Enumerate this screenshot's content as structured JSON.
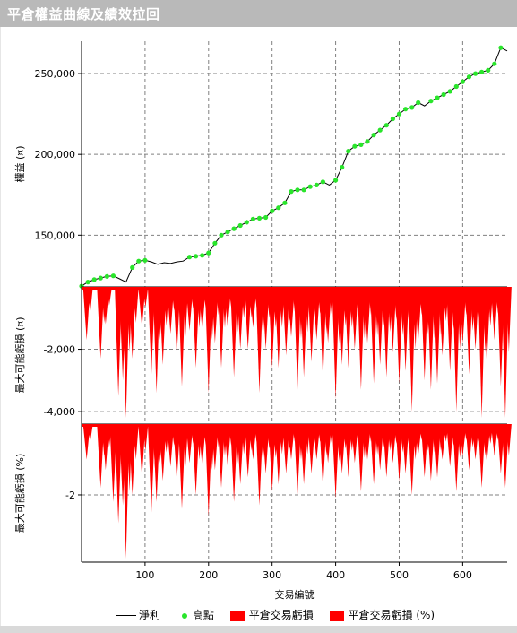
{
  "window": {
    "title": "平倉權益曲線及績效拉回"
  },
  "colors": {
    "net": "#000000",
    "high": "#29e52b",
    "drawdown": "#ff0000",
    "grid": "#808080",
    "titlebar": "#b9b9b9"
  },
  "legend": [
    {
      "label": "淨利",
      "swatch": "line"
    },
    {
      "label": "高點",
      "swatch": "dot"
    },
    {
      "label": "平倉交易虧損",
      "swatch": "box"
    },
    {
      "label": "平倉交易虧損 (%)",
      "swatch": "box"
    }
  ],
  "chart_data": [
    {
      "type": "line",
      "ylabel": "權益 (¤)",
      "xlim": [
        0,
        670
      ],
      "ylim": [
        118000,
        270000
      ],
      "yticks": [
        150000,
        200000,
        250000
      ],
      "ytick_labels": [
        "150,000",
        "200,000",
        "250,000"
      ],
      "grid": true,
      "series": [
        {
          "name": "淨利",
          "x": [
            0,
            10,
            20,
            30,
            40,
            50,
            60,
            70,
            80,
            90,
            100,
            110,
            120,
            130,
            140,
            150,
            160,
            170,
            180,
            190,
            200,
            210,
            220,
            230,
            240,
            250,
            260,
            270,
            280,
            290,
            300,
            310,
            320,
            330,
            340,
            350,
            360,
            370,
            380,
            390,
            400,
            410,
            420,
            430,
            440,
            450,
            460,
            470,
            480,
            490,
            500,
            510,
            520,
            530,
            540,
            550,
            560,
            570,
            580,
            590,
            600,
            610,
            620,
            630,
            640,
            650,
            660,
            670
          ],
          "y": [
            118500,
            121000,
            122500,
            123500,
            124500,
            124800,
            123000,
            121000,
            130000,
            134000,
            134500,
            133500,
            132000,
            133000,
            132500,
            133500,
            134000,
            136500,
            137000,
            137500,
            139000,
            145000,
            150000,
            152000,
            154000,
            156000,
            158000,
            160000,
            160500,
            161000,
            165000,
            167000,
            170000,
            177000,
            178000,
            178000,
            180000,
            181000,
            183000,
            181000,
            184000,
            192000,
            202000,
            205000,
            206000,
            208000,
            212000,
            215000,
            218000,
            222000,
            225000,
            228000,
            229000,
            232000,
            230000,
            233000,
            235000,
            237000,
            239000,
            242000,
            245000,
            248000,
            250000,
            251000,
            252000,
            256000,
            266000,
            264000
          ]
        }
      ]
    },
    {
      "type": "area",
      "ylabel": "最大可能虧損 (¤)",
      "xlim": [
        0,
        670
      ],
      "ylim": [
        -4400,
        0
      ],
      "yticks": [
        -2000,
        -4000
      ],
      "ytick_labels": [
        "-2,000",
        "-4,000"
      ],
      "grid": true,
      "series": [
        {
          "name": "平倉交易虧損",
          "x": [
            8,
            30,
            38,
            58,
            65,
            70,
            80,
            95,
            110,
            118,
            128,
            140,
            150,
            158,
            170,
            180,
            190,
            200,
            210,
            220,
            230,
            240,
            250,
            262,
            270,
            280,
            290,
            300,
            310,
            322,
            330,
            340,
            350,
            362,
            370,
            380,
            388,
            400,
            410,
            420,
            430,
            440,
            450,
            460,
            470,
            480,
            490,
            500,
            510,
            520,
            530,
            540,
            550,
            560,
            568,
            580,
            590,
            600,
            610,
            620,
            630,
            638,
            650,
            660,
            667
          ],
          "y": [
            -1700,
            -2300,
            -1200,
            -3500,
            -3000,
            -4200,
            -2300,
            -1300,
            -2800,
            -3400,
            -2500,
            -1500,
            -2200,
            -3200,
            -1400,
            -2600,
            -1400,
            -3400,
            -1800,
            -2600,
            -1300,
            -2900,
            -2000,
            -2000,
            -1300,
            -3400,
            -2000,
            -2600,
            -2600,
            -2200,
            -1600,
            -3300,
            -2900,
            -2400,
            -1700,
            -3000,
            -1800,
            -3600,
            -2500,
            -2600,
            -2000,
            -3300,
            -1800,
            -3100,
            -2500,
            -2900,
            -2100,
            -3100,
            -2700,
            -4000,
            -1800,
            -3000,
            -3300,
            -3100,
            -2200,
            -2700,
            -4000,
            -1800,
            -2800,
            -2000,
            -4200,
            -2500,
            -1700,
            -3200,
            -4200
          ]
        }
      ]
    },
    {
      "type": "area",
      "ylabel": "最大可能虧損 (%)",
      "xlim": [
        0,
        670
      ],
      "ylim": [
        -3.9,
        0
      ],
      "yticks": [
        -2
      ],
      "ytick_labels": [
        "-2"
      ],
      "grid": true,
      "series": [
        {
          "name": "平倉交易虧損 (%)",
          "x": [
            8,
            30,
            38,
            50,
            58,
            65,
            70,
            80,
            95,
            110,
            118,
            128,
            140,
            150,
            158,
            170,
            180,
            190,
            200,
            210,
            220,
            230,
            240,
            250,
            262,
            270,
            280,
            290,
            300,
            310,
            322,
            330,
            340,
            350,
            362,
            370,
            380,
            388,
            400,
            410,
            420,
            430,
            440,
            450,
            460,
            470,
            480,
            490,
            500,
            510,
            520,
            530,
            540,
            550,
            560,
            568,
            580,
            590,
            600,
            610,
            620,
            630,
            638,
            650,
            660,
            667
          ],
          "y": [
            -1.0,
            -1.8,
            -1.3,
            -2.2,
            -2.8,
            -2.3,
            -3.8,
            -2.0,
            -1.5,
            -2.5,
            -2.2,
            -1.6,
            -1.2,
            -1.6,
            -2.4,
            -1.1,
            -2.0,
            -1.2,
            -2.6,
            -1.3,
            -1.8,
            -1.2,
            -2.2,
            -1.7,
            -1.5,
            -1.0,
            -2.3,
            -1.4,
            -1.9,
            -1.7,
            -1.4,
            -1.0,
            -2.0,
            -1.7,
            -1.4,
            -1.0,
            -1.8,
            -1.1,
            -2.1,
            -1.4,
            -1.5,
            -1.1,
            -1.9,
            -1.0,
            -1.7,
            -1.3,
            -1.5,
            -1.1,
            -1.6,
            -1.4,
            -2.0,
            -0.9,
            -1.5,
            -1.6,
            -1.5,
            -1.0,
            -1.2,
            -1.9,
            -0.9,
            -1.3,
            -1.0,
            -1.8,
            -1.1,
            -0.9,
            -1.4,
            -1.8
          ]
        }
      ]
    }
  ],
  "shared_x": {
    "xlabel": "交易編號",
    "ticks": [
      100,
      200,
      300,
      400,
      500,
      600
    ],
    "tick_labels": [
      "100",
      "200",
      "300",
      "400",
      "500",
      "600"
    ]
  }
}
